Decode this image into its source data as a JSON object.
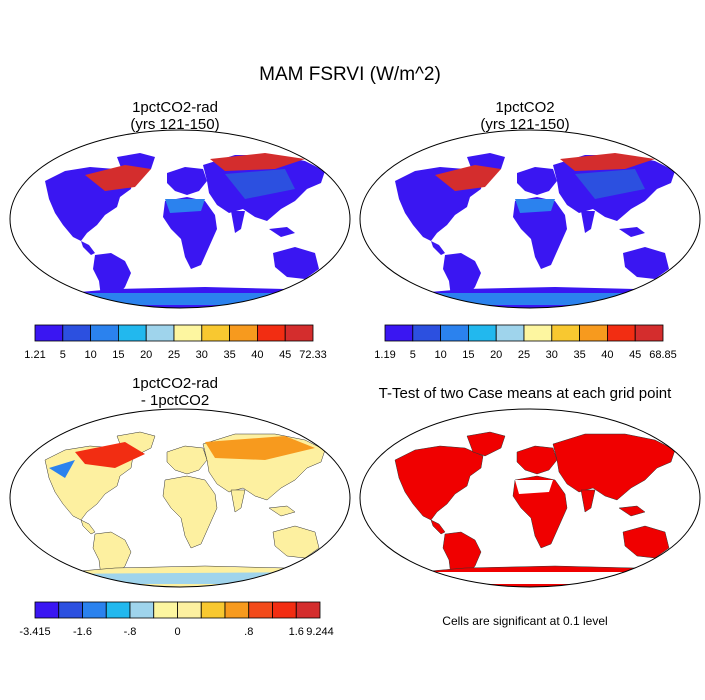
{
  "figure_title": "MAM FSRVI (W/m^2)",
  "panels": [
    {
      "title1": "1pctCO2-rad",
      "title2": "(yrs 121-150)"
    },
    {
      "title1": "1pctCO2",
      "title2": "(yrs 121-150)"
    },
    {
      "title1": "1pctCO2-rad",
      "title2": "- 1pctCO2"
    },
    {
      "title1": "T-Test of two Case means at each grid point",
      "title2": ""
    }
  ],
  "colorbars": [
    {
      "colors": [
        "#3a16f2",
        "#2c50e0",
        "#2b82ee",
        "#22b8ee",
        "#9fd4ec",
        "#fdf6a0",
        "#f8c830",
        "#f79a1e",
        "#f22d12",
        "#d42d2d"
      ],
      "labels": [
        "1.21",
        "5",
        "10",
        "15",
        "20",
        "25",
        "30",
        "35",
        "40",
        "45",
        "72.33"
      ]
    },
    {
      "colors": [
        "#3a16f2",
        "#2c50e0",
        "#2b82ee",
        "#22b8ee",
        "#9fd4ec",
        "#fdf6a0",
        "#f8c830",
        "#f79a1e",
        "#f22d12",
        "#d42d2d"
      ],
      "labels": [
        "1.19",
        "5",
        "10",
        "15",
        "20",
        "25",
        "30",
        "35",
        "40",
        "45",
        "68.85"
      ]
    },
    {
      "colors": [
        "#3a16f2",
        "#2c50e0",
        "#2b82ee",
        "#22b8ee",
        "#9fd4ec",
        "#fdf6a0",
        "#fdf0a0",
        "#f8c830",
        "#f79a1e",
        "#f24a1a",
        "#f22d12",
        "#d42d2d"
      ],
      "labels": [
        "-3.415",
        "",
        "-1.6",
        "",
        "-.8",
        "",
        "0",
        "",
        "",
        ".8",
        "",
        "1.6",
        "9.244"
      ]
    }
  ],
  "significance_note": "Cells are significant at 0.1 level",
  "colors": {
    "land_low": "#3a16f2",
    "significant": "#f00000"
  }
}
